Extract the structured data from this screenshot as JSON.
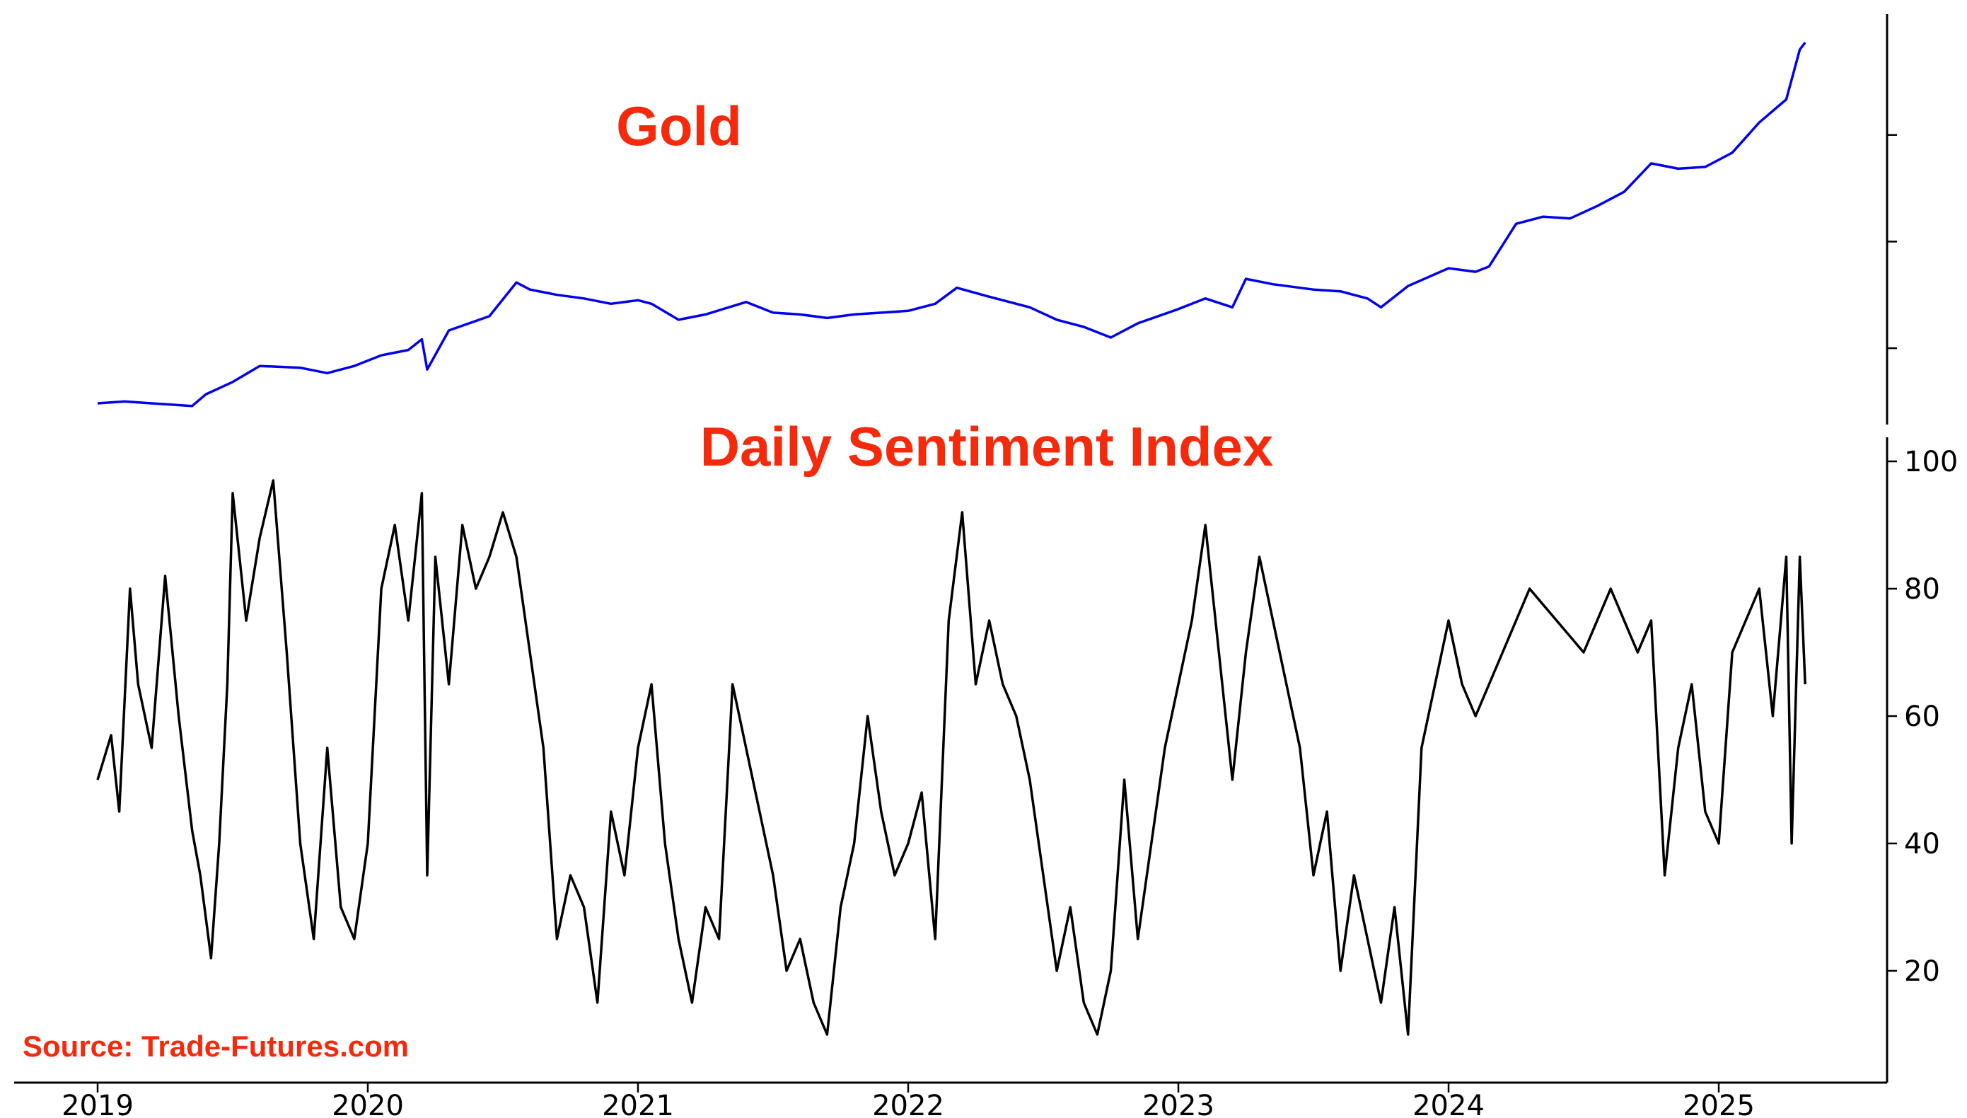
{
  "chart_data": [
    {
      "type": "line",
      "title": "Gold",
      "xlabel": "",
      "ylabel": "",
      "x_ticks": [
        "2019",
        "2020",
        "2021",
        "2022",
        "2023",
        "2024",
        "2025"
      ],
      "y_ticks_labeled": false,
      "ylim": [
        1250,
        3400
      ],
      "grid": false,
      "color": "#0000ee",
      "series": [
        {
          "x": [
            2019.0,
            2019.1,
            2019.2,
            2019.3,
            2019.35,
            2019.4,
            2019.5,
            2019.6,
            2019.75,
            2019.85,
            2019.95,
            2020.05,
            2020.15,
            2020.2,
            2020.22,
            2020.3,
            2020.45,
            2020.55,
            2020.6,
            2020.7,
            2020.8,
            2020.9,
            2021.0,
            2021.05,
            2021.15,
            2021.25,
            2021.4,
            2021.5,
            2021.6,
            2021.7,
            2021.8,
            2021.9,
            2022.0,
            2022.1,
            2022.18,
            2022.3,
            2022.45,
            2022.55,
            2022.65,
            2022.75,
            2022.85,
            2023.0,
            2023.1,
            2023.2,
            2023.25,
            2023.35,
            2023.5,
            2023.6,
            2023.7,
            2023.75,
            2023.85,
            2024.0,
            2024.1,
            2024.15,
            2024.25,
            2024.35,
            2024.45,
            2024.55,
            2024.65,
            2024.75,
            2024.85,
            2024.95,
            2025.05,
            2025.15,
            2025.25,
            2025.3,
            2025.32
          ],
          "values": [
            1290,
            1300,
            1290,
            1280,
            1275,
            1340,
            1410,
            1500,
            1490,
            1460,
            1500,
            1560,
            1590,
            1650,
            1480,
            1700,
            1780,
            1970,
            1930,
            1900,
            1880,
            1850,
            1870,
            1850,
            1760,
            1790,
            1860,
            1800,
            1790,
            1770,
            1790,
            1800,
            1810,
            1850,
            1940,
            1890,
            1830,
            1760,
            1720,
            1660,
            1740,
            1820,
            1880,
            1830,
            1990,
            1960,
            1930,
            1920,
            1880,
            1830,
            1950,
            2050,
            2030,
            2060,
            2300,
            2340,
            2330,
            2400,
            2480,
            2640,
            2610,
            2620,
            2700,
            2870,
            3000,
            3280,
            3320
          ]
        }
      ]
    },
    {
      "type": "line",
      "title": "Daily Sentiment Index",
      "xlabel": "",
      "ylabel": "",
      "x_ticks": [
        "2019",
        "2020",
        "2021",
        "2022",
        "2023",
        "2024",
        "2025"
      ],
      "y_ticks": [
        "20",
        "40",
        "60",
        "80",
        "100"
      ],
      "ylim": [
        5,
        102
      ],
      "grid": false,
      "color": "#000000",
      "series": [
        {
          "x": [
            2019.0,
            2019.05,
            2019.08,
            2019.12,
            2019.15,
            2019.2,
            2019.25,
            2019.3,
            2019.35,
            2019.38,
            2019.42,
            2019.45,
            2019.48,
            2019.5,
            2019.55,
            2019.6,
            2019.65,
            2019.7,
            2019.75,
            2019.8,
            2019.85,
            2019.9,
            2019.95,
            2020.0,
            2020.05,
            2020.1,
            2020.15,
            2020.2,
            2020.22,
            2020.25,
            2020.3,
            2020.35,
            2020.4,
            2020.45,
            2020.5,
            2020.55,
            2020.6,
            2020.65,
            2020.7,
            2020.75,
            2020.8,
            2020.85,
            2020.9,
            2020.95,
            2021.0,
            2021.05,
            2021.1,
            2021.15,
            2021.2,
            2021.25,
            2021.3,
            2021.35,
            2021.4,
            2021.45,
            2021.5,
            2021.55,
            2021.6,
            2021.65,
            2021.7,
            2021.75,
            2021.8,
            2021.85,
            2021.9,
            2021.95,
            2022.0,
            2022.05,
            2022.1,
            2022.15,
            2022.2,
            2022.25,
            2022.3,
            2022.35,
            2022.4,
            2022.45,
            2022.5,
            2022.55,
            2022.6,
            2022.65,
            2022.7,
            2022.75,
            2022.8,
            2022.85,
            2022.9,
            2022.95,
            2023.0,
            2023.05,
            2023.1,
            2023.15,
            2023.2,
            2023.25,
            2023.3,
            2023.35,
            2023.4,
            2023.45,
            2023.5,
            2023.55,
            2023.6,
            2023.65,
            2023.7,
            2023.75,
            2023.8,
            2023.85,
            2023.9,
            2023.95,
            2024.0,
            2024.05,
            2024.1,
            2024.2,
            2024.3,
            2024.4,
            2024.5,
            2024.6,
            2024.7,
            2024.75,
            2024.8,
            2024.85,
            2024.9,
            2024.95,
            2025.0,
            2025.05,
            2025.1,
            2025.15,
            2025.2,
            2025.25,
            2025.27,
            2025.3,
            2025.32
          ],
          "values": [
            50,
            57,
            45,
            80,
            65,
            55,
            82,
            60,
            42,
            35,
            22,
            40,
            65,
            95,
            75,
            88,
            97,
            70,
            40,
            25,
            55,
            30,
            25,
            40,
            80,
            90,
            75,
            95,
            35,
            85,
            65,
            90,
            80,
            85,
            92,
            85,
            70,
            55,
            25,
            35,
            30,
            15,
            45,
            35,
            55,
            65,
            40,
            25,
            15,
            30,
            25,
            65,
            55,
            45,
            35,
            20,
            25,
            15,
            10,
            30,
            40,
            60,
            45,
            35,
            40,
            48,
            25,
            75,
            92,
            65,
            75,
            65,
            60,
            50,
            35,
            20,
            30,
            15,
            10,
            20,
            50,
            25,
            40,
            55,
            65,
            75,
            90,
            70,
            50,
            70,
            85,
            75,
            65,
            55,
            35,
            45,
            20,
            35,
            25,
            15,
            30,
            10,
            55,
            65,
            75,
            65,
            60,
            70,
            80,
            75,
            70,
            80,
            70,
            75,
            35,
            55,
            65,
            45,
            40,
            70,
            75,
            80,
            60,
            85,
            40,
            85,
            65
          ]
        }
      ]
    }
  ],
  "source": "Source: Trade-Futures.com"
}
